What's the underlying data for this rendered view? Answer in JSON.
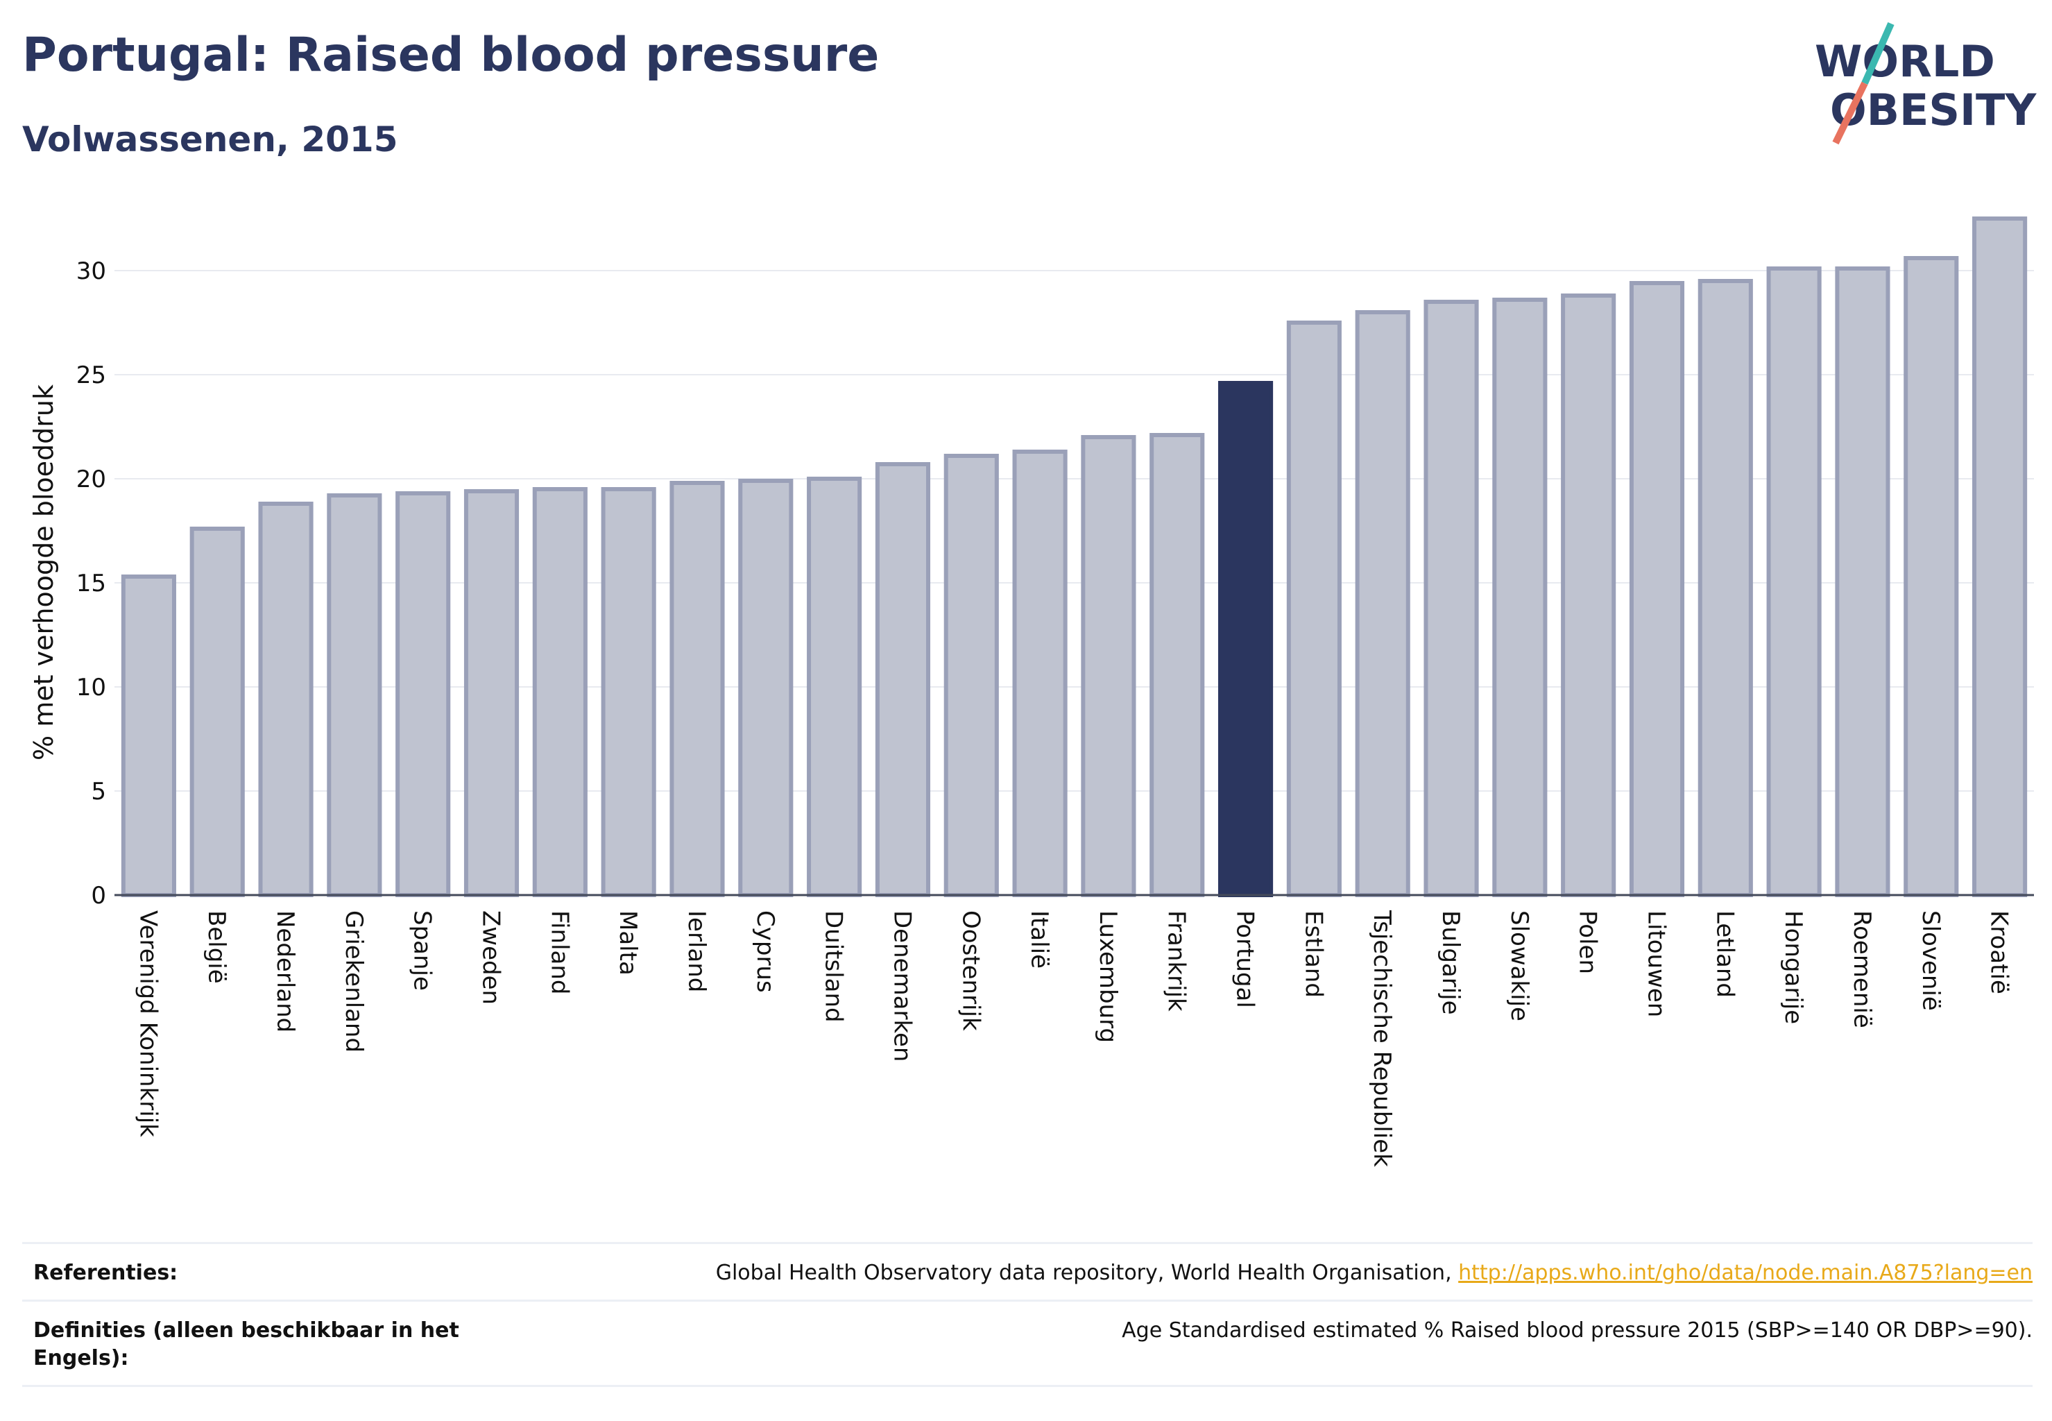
{
  "header": {
    "title": "Portugal: Raised blood pressure",
    "subtitle": "Volwassenen, 2015"
  },
  "logo": {
    "line1": "WORLD",
    "line2": "OBESITY",
    "slash_color_top": "#3bb8b0",
    "slash_color_bottom": "#e8735f"
  },
  "chart_data": {
    "type": "bar",
    "ylabel": "% met verhoogde bloeddruk",
    "ylim": [
      0,
      33
    ],
    "yticks": [
      0,
      5,
      10,
      15,
      20,
      25,
      30
    ],
    "grid": true,
    "highlight": "Portugal",
    "colors": {
      "bar": "#bfc3d0",
      "bar_border": "#9aa0b8",
      "highlight": "#2b365f"
    },
    "categories": [
      "Verenigd Koninkrijk",
      "België",
      "Nederland",
      "Griekenland",
      "Spanje",
      "Zweden",
      "Finland",
      "Malta",
      "Ierland",
      "Cyprus",
      "Duitsland",
      "Denemarken",
      "Oostenrijk",
      "Italië",
      "Luxemburg",
      "Frankrijk",
      "Portugal",
      "Estland",
      "Tsjechische Republiek",
      "Bulgarije",
      "Slowakije",
      "Polen",
      "Litouwen",
      "Letland",
      "Hongarije",
      "Roemenië",
      "Slovenië",
      "Kroatië"
    ],
    "values": [
      15.3,
      17.6,
      18.8,
      19.2,
      19.3,
      19.4,
      19.5,
      19.5,
      19.8,
      19.9,
      20.0,
      20.7,
      21.1,
      21.3,
      22.0,
      22.1,
      24.6,
      27.5,
      28.0,
      28.5,
      28.6,
      28.8,
      29.4,
      29.5,
      30.1,
      30.1,
      30.6,
      32.5
    ]
  },
  "footer": {
    "references_label": "Referenties:",
    "references_text": "Global Health Observatory data repository, World Health Organisation, ",
    "references_link": "http://apps.who.int/gho/data/node.main.A875?lang=en",
    "definitions_label": "Definities (alleen beschikbaar in het Engels):",
    "definitions_text": "Age Standardised estimated % Raised blood pressure 2015 (SBP>=140 OR DBP>=90)."
  }
}
